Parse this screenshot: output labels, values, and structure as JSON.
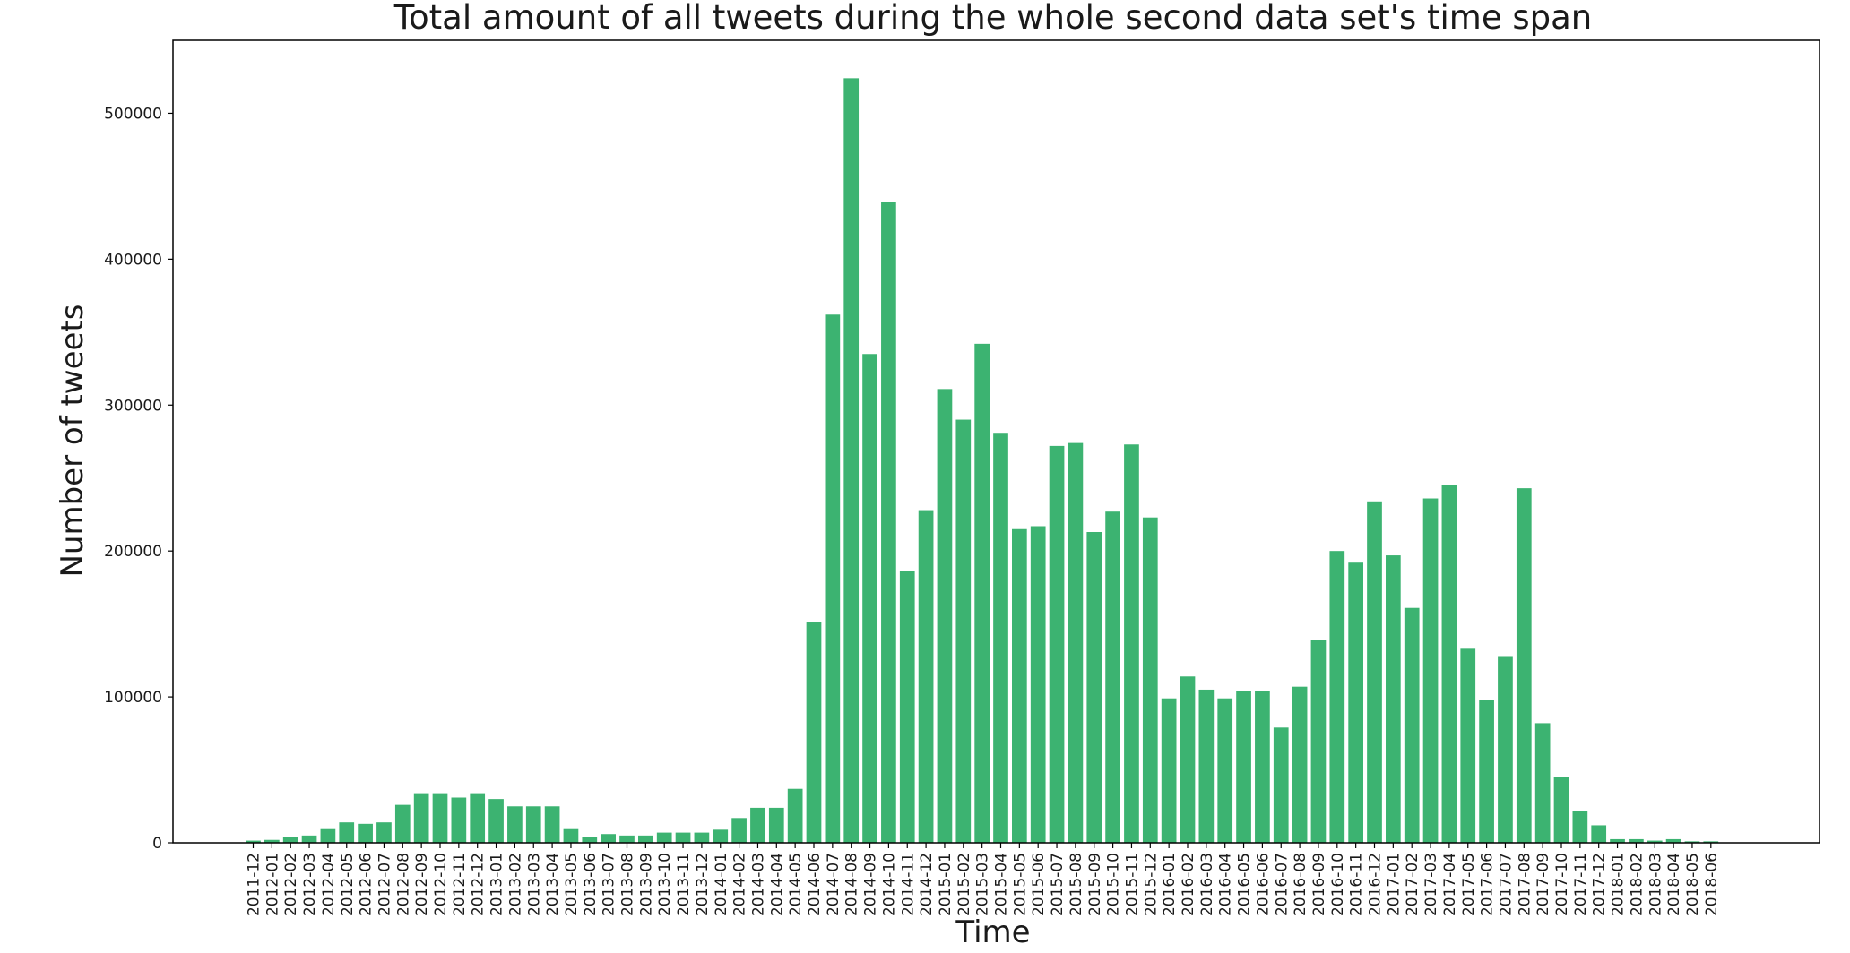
{
  "chart_data": {
    "type": "bar",
    "title": "Total amount of all tweets during the whole second data set's time span",
    "xlabel": "Time",
    "ylabel": "Number of tweets",
    "ylim": [
      0,
      550000
    ],
    "yticks": [
      0,
      100000,
      200000,
      300000,
      400000,
      500000
    ],
    "ytick_labels": [
      "0",
      "100000",
      "200000",
      "300000",
      "400000",
      "500000"
    ],
    "grid": false,
    "legend": "none",
    "bar_color": "#3cb371",
    "categories": [
      "2011-12",
      "2012-01",
      "2012-02",
      "2012-03",
      "2012-04",
      "2012-05",
      "2012-06",
      "2012-07",
      "2012-08",
      "2012-09",
      "2012-10",
      "2012-11",
      "2012-12",
      "2013-01",
      "2013-02",
      "2013-03",
      "2013-04",
      "2013-05",
      "2013-06",
      "2013-07",
      "2013-08",
      "2013-09",
      "2013-10",
      "2013-11",
      "2013-12",
      "2014-01",
      "2014-02",
      "2014-03",
      "2014-04",
      "2014-05",
      "2014-06",
      "2014-07",
      "2014-08",
      "2014-09",
      "2014-10",
      "2014-11",
      "2014-12",
      "2015-01",
      "2015-02",
      "2015-03",
      "2015-04",
      "2015-05",
      "2015-06",
      "2015-07",
      "2015-08",
      "2015-09",
      "2015-10",
      "2015-11",
      "2015-12",
      "2016-01",
      "2016-02",
      "2016-03",
      "2016-04",
      "2016-05",
      "2016-06",
      "2016-07",
      "2016-08",
      "2016-09",
      "2016-10",
      "2016-11",
      "2016-12",
      "2017-01",
      "2017-02",
      "2017-03",
      "2017-04",
      "2017-05",
      "2017-06",
      "2017-07",
      "2017-08",
      "2017-09",
      "2017-10",
      "2017-11",
      "2017-12",
      "2018-01",
      "2018-02",
      "2018-03",
      "2018-04",
      "2018-05",
      "2018-06"
    ],
    "values": [
      1500,
      2000,
      4000,
      5000,
      10000,
      14000,
      13000,
      14000,
      26000,
      34000,
      34000,
      31000,
      34000,
      30000,
      25000,
      25000,
      25000,
      10000,
      4000,
      6000,
      5000,
      5000,
      7000,
      7000,
      7000,
      9000,
      17000,
      24000,
      24000,
      37000,
      151000,
      362000,
      524000,
      335000,
      439000,
      186000,
      228000,
      311000,
      290000,
      342000,
      281000,
      215000,
      217000,
      272000,
      274000,
      213000,
      227000,
      273000,
      223000,
      99000,
      114000,
      105000,
      99000,
      104000,
      104000,
      79000,
      107000,
      139000,
      200000,
      192000,
      234000,
      197000,
      161000,
      236000,
      245000,
      133000,
      98000,
      128000,
      243000,
      82000,
      45000,
      22000,
      12000,
      2500,
      2500,
      1500,
      2500,
      1000,
      1000
    ]
  }
}
